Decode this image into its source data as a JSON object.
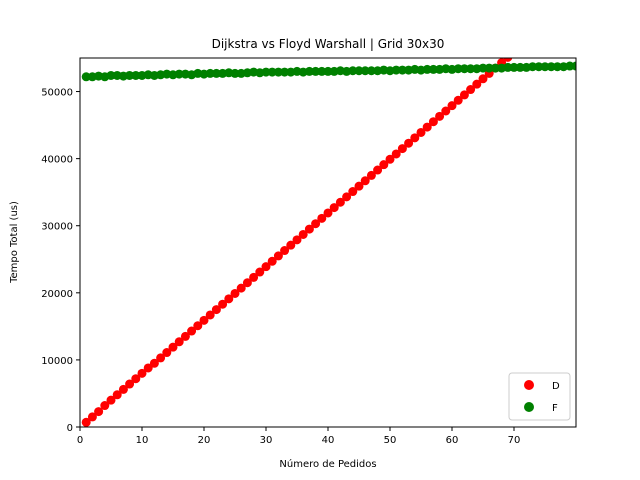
{
  "chart_data": {
    "type": "scatter",
    "title": "Dijkstra vs Floyd Warshall | Grid 30x30",
    "xlabel": "Número de Pedidos",
    "ylabel": "Tempo Total (us)",
    "xlim": [
      0,
      80
    ],
    "ylim": [
      0,
      55000
    ],
    "xticks": [
      0,
      10,
      20,
      30,
      40,
      50,
      60,
      70
    ],
    "yticks": [
      0,
      10000,
      20000,
      30000,
      40000,
      50000
    ],
    "xtick_labels": [
      "0",
      "10",
      "20",
      "30",
      "40",
      "50",
      "60",
      "70"
    ],
    "ytick_labels": [
      "0",
      "10000",
      "20000",
      "30000",
      "40000",
      "50000"
    ],
    "grid": false,
    "legend_position": "bottom-right",
    "series": [
      {
        "name": "D",
        "color": "#ff0000",
        "x": [
          1,
          2,
          3,
          4,
          5,
          6,
          7,
          8,
          9,
          10,
          11,
          12,
          13,
          14,
          15,
          16,
          17,
          18,
          19,
          20,
          21,
          22,
          23,
          24,
          25,
          26,
          27,
          28,
          29,
          30,
          31,
          32,
          33,
          34,
          35,
          36,
          37,
          38,
          39,
          40,
          41,
          42,
          43,
          44,
          45,
          46,
          47,
          48,
          49,
          50,
          51,
          52,
          53,
          54,
          55,
          56,
          57,
          58,
          59,
          60,
          61,
          62,
          63,
          64,
          65,
          66,
          67,
          68,
          69,
          70
        ],
        "y": [
          700,
          1500,
          2300,
          3200,
          4000,
          4800,
          5600,
          6400,
          7200,
          8000,
          8800,
          9500,
          10300,
          11100,
          11900,
          12700,
          13500,
          14300,
          15100,
          15900,
          16700,
          17500,
          18300,
          19100,
          19900,
          20700,
          21500,
          22300,
          23100,
          23900,
          24700,
          25500,
          26300,
          27100,
          27900,
          28700,
          29500,
          30300,
          31100,
          31900,
          32700,
          33500,
          34300,
          35100,
          35900,
          36700,
          37500,
          38300,
          39100,
          39900,
          40700,
          41500,
          42300,
          43100,
          43900,
          44700,
          45500,
          46300,
          47100,
          47900,
          48700,
          49500,
          50300,
          51100,
          51900,
          52700,
          53500,
          54300,
          55100,
          55900
        ]
      },
      {
        "name": "F",
        "color": "#008000",
        "x": [
          1,
          2,
          3,
          4,
          5,
          6,
          7,
          8,
          9,
          10,
          11,
          12,
          13,
          14,
          15,
          16,
          17,
          18,
          19,
          20,
          21,
          22,
          23,
          24,
          25,
          26,
          27,
          28,
          29,
          30,
          31,
          32,
          33,
          34,
          35,
          36,
          37,
          38,
          39,
          40,
          41,
          42,
          43,
          44,
          45,
          46,
          47,
          48,
          49,
          50,
          51,
          52,
          53,
          54,
          55,
          56,
          57,
          58,
          59,
          60,
          61,
          62,
          63,
          64,
          65,
          66,
          67,
          68,
          69,
          70,
          71,
          72,
          73,
          74,
          75,
          76,
          77,
          78,
          79,
          80
        ],
        "y": [
          52200,
          52200,
          52300,
          52200,
          52400,
          52400,
          52300,
          52400,
          52400,
          52400,
          52500,
          52400,
          52500,
          52600,
          52500,
          52600,
          52600,
          52500,
          52700,
          52600,
          52700,
          52700,
          52700,
          52800,
          52700,
          52700,
          52800,
          52900,
          52800,
          52900,
          52900,
          52900,
          52900,
          52900,
          53000,
          52900,
          53000,
          53000,
          53000,
          53000,
          53000,
          53100,
          53000,
          53100,
          53100,
          53100,
          53100,
          53100,
          53200,
          53100,
          53200,
          53200,
          53200,
          53300,
          53200,
          53300,
          53300,
          53300,
          53400,
          53300,
          53400,
          53400,
          53400,
          53400,
          53500,
          53500,
          53500,
          53500,
          53600,
          53600,
          53600,
          53600,
          53700,
          53700,
          53700,
          53700,
          53700,
          53700,
          53800,
          53800
        ]
      }
    ]
  }
}
